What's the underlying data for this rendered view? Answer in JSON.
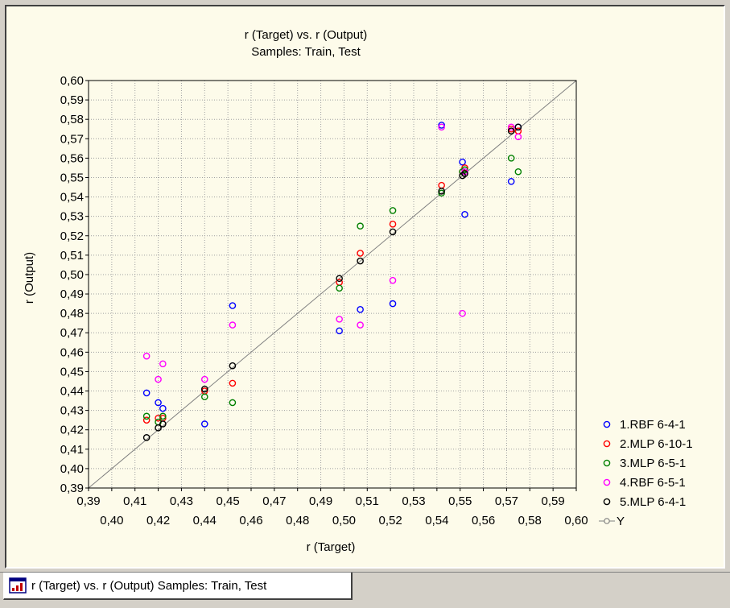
{
  "window": {
    "tab_label": "r (Target) vs. r (Output)  Samples: Train, Test",
    "tab_icon": "chart-window-icon"
  },
  "chart_data": {
    "type": "scatter",
    "title": "r (Target) vs. r (Output)",
    "subtitle": "Samples: Train, Test",
    "xlabel": "r (Target)",
    "ylabel": "r (Output)",
    "xlim": [
      0.39,
      0.6
    ],
    "ylim": [
      0.39,
      0.6
    ],
    "grid": true,
    "legend_position": "bottom-right",
    "y_ticks": [
      "0,39",
      "0,40",
      "0,41",
      "0,42",
      "0,43",
      "0,44",
      "0,45",
      "0,46",
      "0,47",
      "0,48",
      "0,49",
      "0,50",
      "0,51",
      "0,52",
      "0,53",
      "0,54",
      "0,55",
      "0,56",
      "0,57",
      "0,58",
      "0,59",
      "0,60"
    ],
    "x_ticks_upper": [
      "0,39",
      "0,41",
      "0,43",
      "0,45",
      "0,47",
      "0,49",
      "0,51",
      "0,53",
      "0,55",
      "0,57",
      "0,59"
    ],
    "x_ticks_lower": [
      "0,40",
      "0,42",
      "0,44",
      "0,46",
      "0,48",
      "0,50",
      "0,52",
      "0,54",
      "0,56",
      "0,58",
      "0,60"
    ],
    "x_targets": [
      0.415,
      0.42,
      0.422,
      0.44,
      0.452,
      0.498,
      0.507,
      0.521,
      0.542,
      0.551,
      0.552,
      0.572,
      0.575
    ],
    "series": [
      {
        "name": "1.RBF 6-4-1",
        "color": "#0000ff",
        "x": [
          0.415,
          0.42,
          0.422,
          0.44,
          0.452,
          0.498,
          0.507,
          0.521,
          0.542,
          0.551,
          0.552,
          0.572,
          0.575
        ],
        "y": [
          0.439,
          0.434,
          0.431,
          0.423,
          0.484,
          0.471,
          0.482,
          0.485,
          0.577,
          0.558,
          0.531,
          0.548,
          0.576
        ]
      },
      {
        "name": "2.MLP 6-10-1",
        "color": "#ff0000",
        "x": [
          0.415,
          0.42,
          0.422,
          0.44,
          0.452,
          0.498,
          0.507,
          0.521,
          0.542,
          0.551,
          0.552,
          0.572,
          0.575
        ],
        "y": [
          0.425,
          0.426,
          0.426,
          0.44,
          0.444,
          0.496,
          0.511,
          0.526,
          0.546,
          0.553,
          0.555,
          0.575,
          0.574
        ]
      },
      {
        "name": "3.MLP 6-5-1",
        "color": "#008000",
        "x": [
          0.415,
          0.42,
          0.422,
          0.44,
          0.452,
          0.498,
          0.507,
          0.521,
          0.542,
          0.551,
          0.552,
          0.572,
          0.575
        ],
        "y": [
          0.427,
          0.424,
          0.427,
          0.437,
          0.434,
          0.493,
          0.525,
          0.533,
          0.542,
          0.553,
          0.554,
          0.56,
          0.553
        ]
      },
      {
        "name": "4.RBF 6-5-1",
        "color": "#ff00ff",
        "x": [
          0.415,
          0.42,
          0.422,
          0.44,
          0.452,
          0.498,
          0.507,
          0.521,
          0.542,
          0.551,
          0.552,
          0.572,
          0.575
        ],
        "y": [
          0.458,
          0.446,
          0.454,
          0.446,
          0.474,
          0.477,
          0.474,
          0.497,
          0.576,
          0.48,
          0.553,
          0.576,
          0.571
        ]
      },
      {
        "name": "5.MLP 6-4-1",
        "color": "#000000",
        "x": [
          0.415,
          0.42,
          0.422,
          0.44,
          0.452,
          0.498,
          0.507,
          0.521,
          0.542,
          0.551,
          0.552,
          0.572,
          0.575
        ],
        "y": [
          0.416,
          0.421,
          0.423,
          0.441,
          0.453,
          0.498,
          0.507,
          0.522,
          0.543,
          0.551,
          0.552,
          0.574,
          0.576
        ]
      }
    ],
    "reference_line": {
      "name": "Y",
      "color": "#808080",
      "from": [
        0.39,
        0.39
      ],
      "to": [
        0.6,
        0.6
      ]
    }
  }
}
